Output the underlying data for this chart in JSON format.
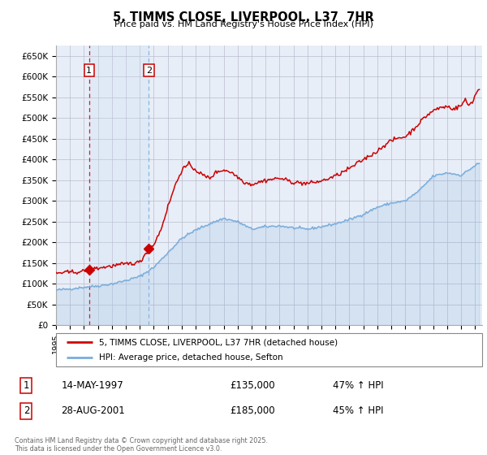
{
  "title": "5, TIMMS CLOSE, LIVERPOOL, L37  7HR",
  "subtitle": "Price paid vs. HM Land Registry's House Price Index (HPI)",
  "ylim": [
    0,
    675000
  ],
  "yticks": [
    0,
    50000,
    100000,
    150000,
    200000,
    250000,
    300000,
    350000,
    400000,
    450000,
    500000,
    550000,
    600000,
    650000
  ],
  "ytick_labels": [
    "£0",
    "£50K",
    "£100K",
    "£150K",
    "£200K",
    "£250K",
    "£300K",
    "£350K",
    "£400K",
    "£450K",
    "£500K",
    "£550K",
    "£600K",
    "£650K"
  ],
  "xlim_start": 1995.0,
  "xlim_end": 2025.5,
  "xtick_years": [
    1995,
    1996,
    1997,
    1998,
    1999,
    2000,
    2001,
    2002,
    2003,
    2004,
    2005,
    2006,
    2007,
    2008,
    2009,
    2010,
    2011,
    2012,
    2013,
    2014,
    2015,
    2016,
    2017,
    2018,
    2019,
    2020,
    2021,
    2022,
    2023,
    2024,
    2025
  ],
  "property_color": "#cc0000",
  "hpi_color": "#7aaddb",
  "hpi_fill_alpha": 0.18,
  "vline1_color": "#cc0000",
  "vline2_color": "#7aaddb",
  "span_color": "#c8ddf0",
  "marker1_x": 1997.37,
  "marker1_y": 135000,
  "marker2_x": 2001.65,
  "marker2_y": 185000,
  "label1": "1",
  "label2": "2",
  "legend_property": "5, TIMMS CLOSE, LIVERPOOL, L37 7HR (detached house)",
  "legend_hpi": "HPI: Average price, detached house, Sefton",
  "transaction1_date": "14-MAY-1997",
  "transaction1_price": "£135,000",
  "transaction1_hpi": "47% ↑ HPI",
  "transaction2_date": "28-AUG-2001",
  "transaction2_price": "£185,000",
  "transaction2_hpi": "45% ↑ HPI",
  "footer": "Contains HM Land Registry data © Crown copyright and database right 2025.\nThis data is licensed under the Open Government Licence v3.0.",
  "bg_color": "#e8eef8",
  "fig_color": "#ffffff",
  "grid_color": "#bbbbcc"
}
